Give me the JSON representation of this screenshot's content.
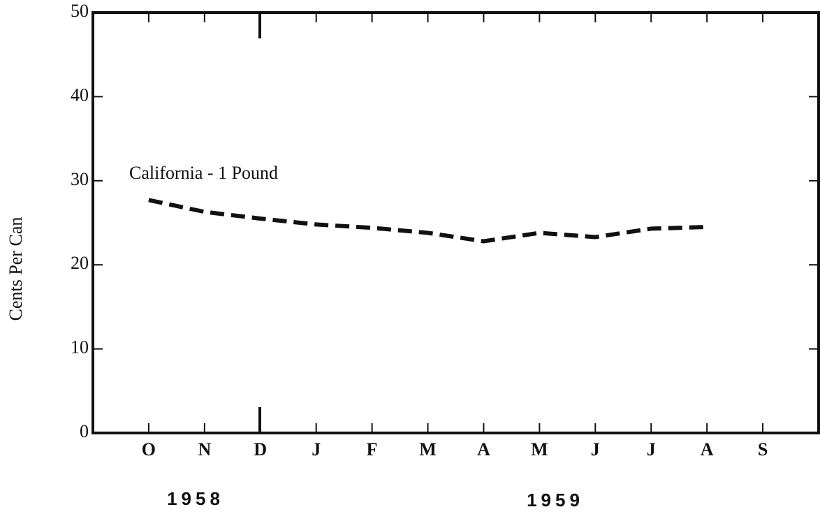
{
  "chart_data": {
    "type": "line",
    "ylabel": "Cents Per Can",
    "categories": [
      "O",
      "N",
      "D",
      "J",
      "F",
      "M",
      "A",
      "M",
      "J",
      "J",
      "A",
      "S"
    ],
    "year_labels": [
      "1958",
      "1959"
    ],
    "series": [
      {
        "name": "California - 1 Pound",
        "color": "#111111",
        "line_style": "dashed",
        "values": [
          27.7,
          26.3,
          25.5,
          24.8,
          24.4,
          23.8,
          22.8,
          23.8,
          23.3,
          24.3,
          24.5,
          null
        ]
      }
    ],
    "ylim": [
      0,
      50
    ],
    "yticks": [
      0,
      10,
      20,
      30,
      40,
      50
    ],
    "grid": false
  }
}
